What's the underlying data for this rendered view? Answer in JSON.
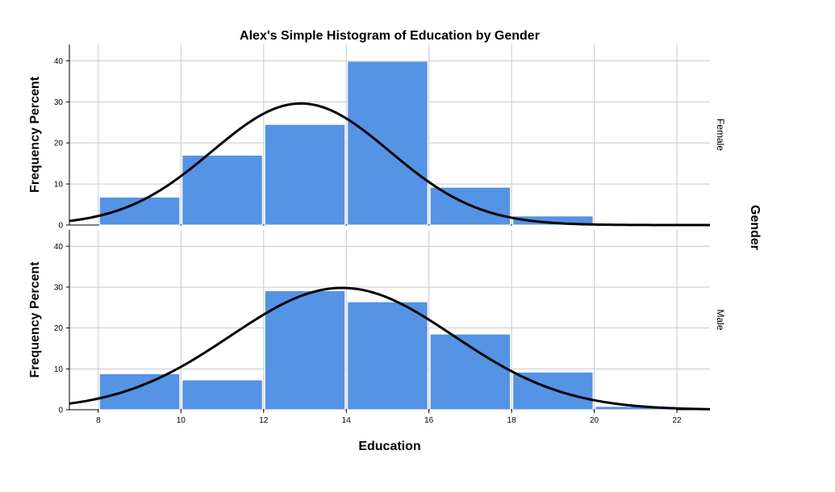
{
  "chart_data": {
    "type": "bar",
    "title": "Alex's Simple Histogram of Education by Gender",
    "xlabel": "Education",
    "ylabel": "Frequency Percent",
    "panel_variable": "Gender",
    "xlim": [
      7.3,
      22.8
    ],
    "ylim": [
      0,
      44
    ],
    "x_ticks": [
      "8",
      "10",
      "12",
      "14",
      "16",
      "18",
      "20",
      "22"
    ],
    "y_ticks": [
      "0",
      "10",
      "20",
      "30",
      "40"
    ],
    "grid": true,
    "bin_width": 2,
    "bar_color": "#5593e4",
    "curve_color": "#000000",
    "panels": [
      {
        "name": "Female",
        "bins": [
          {
            "start": 8,
            "end": 10,
            "value": 6.8
          },
          {
            "start": 10,
            "end": 12,
            "value": 17.0
          },
          {
            "start": 12,
            "end": 14,
            "value": 24.5
          },
          {
            "start": 14,
            "end": 16,
            "value": 39.9
          },
          {
            "start": 16,
            "end": 18,
            "value": 9.2
          },
          {
            "start": 18,
            "end": 20,
            "value": 2.2
          }
        ],
        "normal_curve": {
          "mean": 12.9,
          "sd": 2.15,
          "peak": 29.6
        }
      },
      {
        "name": "Male",
        "bins": [
          {
            "start": 8,
            "end": 10,
            "value": 8.8
          },
          {
            "start": 10,
            "end": 12,
            "value": 7.3
          },
          {
            "start": 12,
            "end": 14,
            "value": 29.1
          },
          {
            "start": 14,
            "end": 16,
            "value": 26.4
          },
          {
            "start": 16,
            "end": 18,
            "value": 18.5
          },
          {
            "start": 18,
            "end": 20,
            "value": 9.2
          },
          {
            "start": 20,
            "end": 22,
            "value": 0.8
          }
        ],
        "normal_curve": {
          "mean": 13.9,
          "sd": 2.7,
          "peak": 29.8
        }
      }
    ]
  }
}
